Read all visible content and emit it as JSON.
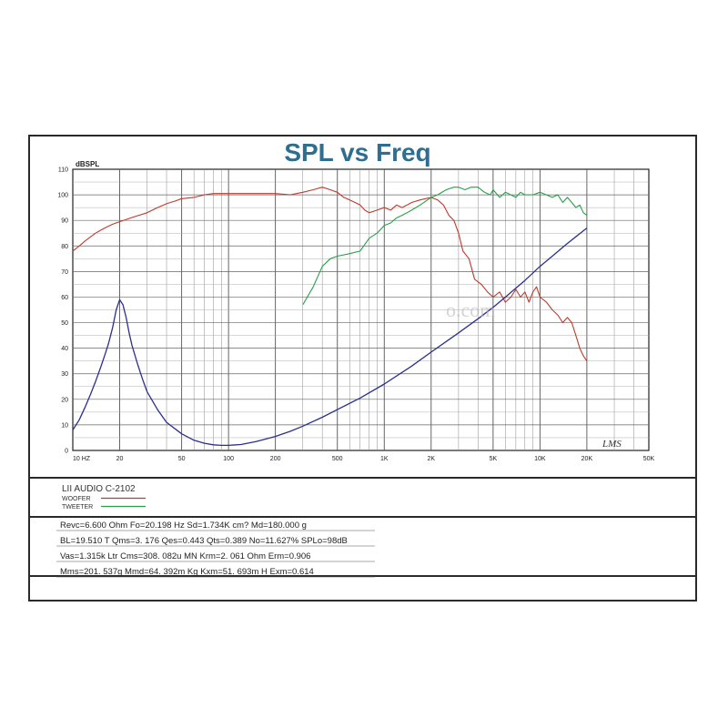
{
  "chart_data": {
    "type": "line",
    "title": "SPL vs Freq",
    "ylabel": "dBSPL",
    "xscale": "log",
    "xlim": [
      10,
      50000
    ],
    "ylim": [
      0,
      110
    ],
    "x_ticks": [
      {
        "value": 10,
        "label": "10  HZ"
      },
      {
        "value": 20,
        "label": "20"
      },
      {
        "value": 50,
        "label": "50"
      },
      {
        "value": 100,
        "label": "100"
      },
      {
        "value": 200,
        "label": "200"
      },
      {
        "value": 500,
        "label": "500"
      },
      {
        "value": 1000,
        "label": "1K"
      },
      {
        "value": 2000,
        "label": "2K"
      },
      {
        "value": 5000,
        "label": "5K"
      },
      {
        "value": 10000,
        "label": "10K"
      },
      {
        "value": 20000,
        "label": "20K"
      },
      {
        "value": 50000,
        "label": "50K"
      }
    ],
    "y_ticks": [
      0,
      10,
      20,
      30,
      40,
      50,
      60,
      70,
      80,
      90,
      100,
      110
    ],
    "grid": true,
    "series": [
      {
        "name": "WOOFER",
        "color": "#c0392b",
        "points": [
          [
            10,
            78
          ],
          [
            11,
            80
          ],
          [
            12,
            82
          ],
          [
            14,
            85
          ],
          [
            16,
            87
          ],
          [
            18,
            88.5
          ],
          [
            20,
            89.5
          ],
          [
            25,
            91.5
          ],
          [
            30,
            93
          ],
          [
            35,
            95
          ],
          [
            40,
            96.5
          ],
          [
            45,
            97.5
          ],
          [
            50,
            98.5
          ],
          [
            60,
            99
          ],
          [
            70,
            100
          ],
          [
            80,
            100.5
          ],
          [
            90,
            100.5
          ],
          [
            100,
            100.5
          ],
          [
            120,
            100.5
          ],
          [
            150,
            100.5
          ],
          [
            200,
            100.5
          ],
          [
            250,
            100
          ],
          [
            300,
            101
          ],
          [
            350,
            102
          ],
          [
            400,
            103
          ],
          [
            450,
            102
          ],
          [
            500,
            101
          ],
          [
            550,
            99
          ],
          [
            600,
            98
          ],
          [
            650,
            97
          ],
          [
            700,
            96
          ],
          [
            750,
            94
          ],
          [
            800,
            93
          ],
          [
            900,
            94
          ],
          [
            1000,
            95
          ],
          [
            1100,
            94
          ],
          [
            1200,
            96
          ],
          [
            1300,
            95
          ],
          [
            1400,
            96
          ],
          [
            1500,
            97
          ],
          [
            1700,
            98
          ],
          [
            2000,
            99
          ],
          [
            2200,
            98
          ],
          [
            2400,
            96
          ],
          [
            2600,
            92
          ],
          [
            2800,
            90
          ],
          [
            3000,
            85
          ],
          [
            3200,
            78
          ],
          [
            3500,
            75
          ],
          [
            3800,
            67
          ],
          [
            4200,
            65
          ],
          [
            4600,
            62
          ],
          [
            5000,
            60
          ],
          [
            5500,
            62
          ],
          [
            6000,
            58
          ],
          [
            6500,
            60
          ],
          [
            7000,
            63
          ],
          [
            7500,
            60
          ],
          [
            8000,
            62
          ],
          [
            8500,
            58
          ],
          [
            9000,
            62
          ],
          [
            9500,
            64
          ],
          [
            10000,
            60
          ],
          [
            11000,
            58
          ],
          [
            12000,
            55
          ],
          [
            13000,
            53
          ],
          [
            14000,
            50
          ],
          [
            15000,
            52
          ],
          [
            16000,
            50
          ],
          [
            17000,
            45
          ],
          [
            18000,
            40
          ],
          [
            19000,
            37
          ],
          [
            20000,
            35
          ]
        ]
      },
      {
        "name": "TWEETER",
        "color": "#27a047",
        "points": [
          [
            300,
            57
          ],
          [
            350,
            64
          ],
          [
            400,
            72
          ],
          [
            450,
            75
          ],
          [
            500,
            76
          ],
          [
            600,
            77
          ],
          [
            700,
            78
          ],
          [
            800,
            83
          ],
          [
            900,
            85
          ],
          [
            1000,
            88
          ],
          [
            1100,
            89
          ],
          [
            1200,
            91
          ],
          [
            1300,
            92
          ],
          [
            1400,
            93
          ],
          [
            1500,
            94
          ],
          [
            1700,
            96
          ],
          [
            2000,
            99
          ],
          [
            2200,
            100
          ],
          [
            2500,
            102
          ],
          [
            2800,
            103
          ],
          [
            3000,
            103
          ],
          [
            3300,
            102
          ],
          [
            3600,
            103
          ],
          [
            4000,
            103
          ],
          [
            4400,
            101
          ],
          [
            4800,
            100
          ],
          [
            5000,
            102
          ],
          [
            5500,
            99
          ],
          [
            6000,
            101
          ],
          [
            6500,
            100
          ],
          [
            7000,
            99
          ],
          [
            7500,
            101
          ],
          [
            8000,
            100
          ],
          [
            9000,
            100
          ],
          [
            10000,
            101
          ],
          [
            11000,
            100
          ],
          [
            12000,
            99
          ],
          [
            13000,
            100
          ],
          [
            14000,
            97
          ],
          [
            15000,
            99
          ],
          [
            16000,
            97
          ],
          [
            17000,
            95
          ],
          [
            18000,
            96
          ],
          [
            19000,
            93
          ],
          [
            20000,
            92
          ]
        ]
      },
      {
        "color": "#2b2f8f",
        "points": [
          [
            10,
            8
          ],
          [
            11,
            12
          ],
          [
            12,
            17
          ],
          [
            13,
            22
          ],
          [
            14,
            27
          ],
          [
            15,
            32
          ],
          [
            16,
            37
          ],
          [
            17,
            42
          ],
          [
            18,
            48
          ],
          [
            19,
            55
          ],
          [
            20,
            59
          ],
          [
            21,
            57
          ],
          [
            22,
            52
          ],
          [
            23,
            46
          ],
          [
            24,
            41
          ],
          [
            26,
            34
          ],
          [
            28,
            28
          ],
          [
            30,
            23
          ],
          [
            35,
            16
          ],
          [
            40,
            11
          ],
          [
            50,
            6.5
          ],
          [
            60,
            4
          ],
          [
            70,
            2.8
          ],
          [
            80,
            2.2
          ],
          [
            90,
            2
          ],
          [
            100,
            2
          ],
          [
            120,
            2.3
          ],
          [
            150,
            3.5
          ],
          [
            200,
            5.5
          ],
          [
            250,
            7.5
          ],
          [
            300,
            9.5
          ],
          [
            400,
            13
          ],
          [
            500,
            16
          ],
          [
            700,
            20.5
          ],
          [
            1000,
            26
          ],
          [
            1500,
            33
          ],
          [
            2000,
            38.5
          ],
          [
            3000,
            46
          ],
          [
            4000,
            51.5
          ],
          [
            5000,
            56
          ],
          [
            6000,
            60
          ],
          [
            7000,
            63.5
          ],
          [
            8000,
            66.5
          ],
          [
            10000,
            72
          ],
          [
            12000,
            76
          ],
          [
            15000,
            81
          ],
          [
            20000,
            87
          ]
        ]
      }
    ]
  },
  "watermark": "o.com",
  "signature": "LMS",
  "legend": {
    "model": "LII AUDIO C-2102",
    "items": [
      {
        "label": "WOOFER",
        "color": "#c0392b"
      },
      {
        "label": "TWEETER",
        "color": "#27a047"
      }
    ]
  },
  "params": [
    "Revc=6.600 Ohm  Fo=20.198 Hz  Sd=1.734K cm?  Md=180.000 g",
    "BL=19.510 T   Qms=3. 176  Qes=0.443   Qts=0.389  No=11.627%  SPLo=98dB",
    "Vas=1.315k Ltr Cms=308. 082u MN Krm=2. 061  Ohm Erm=0.906",
    "Mms=201. 537g  Mmd=64. 392m Kg  Kxm=51. 693m H  Exm=0.614"
  ]
}
